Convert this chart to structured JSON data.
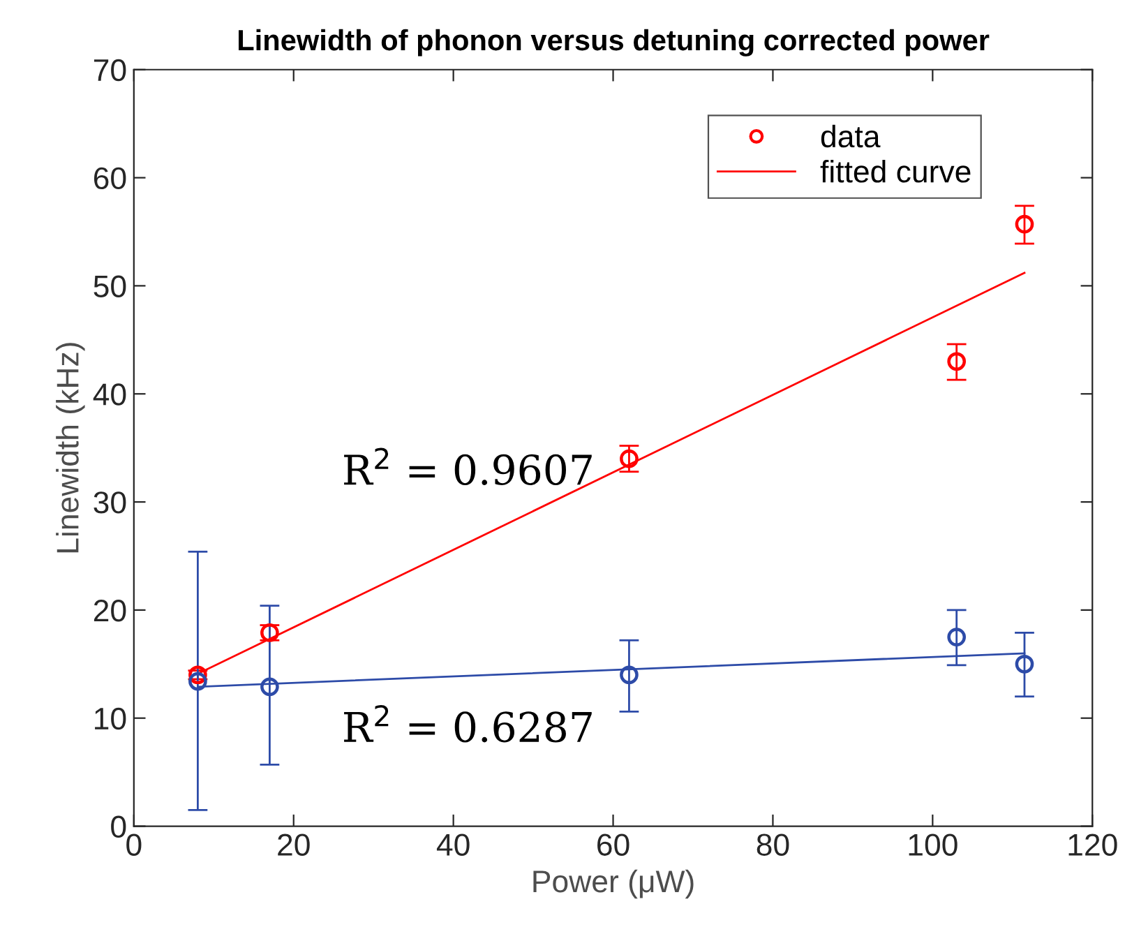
{
  "chart_data": {
    "type": "scatter",
    "title": "Linewidth of phonon versus detuning corrected power",
    "xlabel": "Power (μW)",
    "ylabel": "Linewidth (kHz)",
    "xlim": [
      0,
      120
    ],
    "xticks": [
      0,
      20,
      40,
      60,
      80,
      100,
      120
    ],
    "ylim": [
      0,
      70
    ],
    "yticks": [
      0,
      10,
      20,
      30,
      40,
      50,
      60,
      70
    ],
    "grid": false,
    "legend": "top right",
    "marker": "none",
    "series": [
      {
        "name": "data",
        "marker": "circle",
        "color": "#ff0000",
        "x": [
          8,
          17,
          62,
          103,
          111.5
        ],
        "values": [
          14,
          17.9,
          34,
          43,
          55.7
        ],
        "errors": [
          [
            13.6,
            14.4
          ],
          [
            17.2,
            18.6
          ],
          [
            32.8,
            35.2
          ],
          [
            41.3,
            44.6
          ],
          [
            53.9,
            57.4
          ]
        ]
      },
      {
        "marker": "circle",
        "color": "#2d4ba8",
        "x": [
          8,
          17,
          62,
          103,
          111.5
        ],
        "values": [
          13.4,
          12.9,
          14,
          17.5,
          15
        ],
        "errors": [
          [
            1.5,
            25.4
          ],
          [
            5.7,
            20.4
          ],
          [
            10.6,
            17.2
          ],
          [
            14.9,
            20
          ],
          [
            12,
            17.9
          ]
        ]
      },
      {
        "name": "fitted curve",
        "type": "line",
        "line_style": "solid",
        "color": "#ff0000",
        "x": [
          8,
          111.5
        ],
        "values": [
          14.1,
          51.2
        ]
      },
      {
        "type": "line",
        "line_style": "solid",
        "color": "#2d4ba8",
        "x": [
          8,
          111.5
        ],
        "values": [
          12.9,
          16
        ]
      }
    ],
    "annotations": [
      "R$^{2}$ = 0.9607",
      "R$^{2}$ = 0.6287"
    ]
  }
}
